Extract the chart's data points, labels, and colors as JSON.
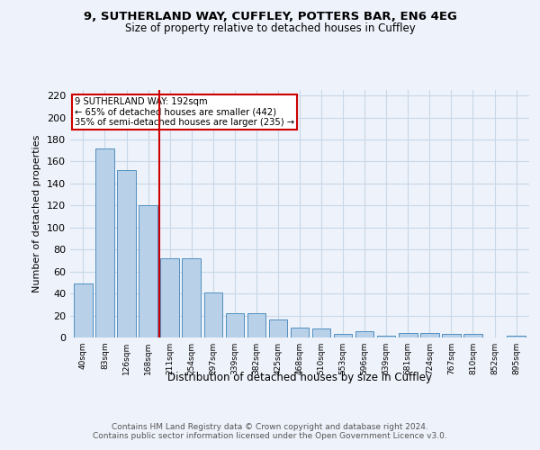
{
  "title1": "9, SUTHERLAND WAY, CUFFLEY, POTTERS BAR, EN6 4EG",
  "title2": "Size of property relative to detached houses in Cuffley",
  "xlabel": "Distribution of detached houses by size in Cuffley",
  "ylabel": "Number of detached properties",
  "categories": [
    "40sqm",
    "83sqm",
    "126sqm",
    "168sqm",
    "211sqm",
    "254sqm",
    "297sqm",
    "339sqm",
    "382sqm",
    "425sqm",
    "468sqm",
    "510sqm",
    "553sqm",
    "596sqm",
    "639sqm",
    "681sqm",
    "724sqm",
    "767sqm",
    "810sqm",
    "852sqm",
    "895sqm"
  ],
  "values": [
    49,
    172,
    152,
    120,
    72,
    72,
    41,
    22,
    22,
    16,
    9,
    8,
    3,
    6,
    2,
    4,
    4,
    3,
    3,
    0,
    2
  ],
  "bar_color": "#b8d0e8",
  "bar_edge_color": "#5090c0",
  "grid_color": "#c8d8e8",
  "annotation_text": "9 SUTHERLAND WAY: 192sqm\n← 65% of detached houses are smaller (442)\n35% of semi-detached houses are larger (235) →",
  "vline_x": 3.5,
  "vline_color": "#cc0000",
  "annotation_box_color": "#cc0000",
  "ylim": [
    0,
    225
  ],
  "yticks": [
    0,
    20,
    40,
    60,
    80,
    100,
    120,
    140,
    160,
    180,
    200,
    220
  ],
  "footer_text": "Contains HM Land Registry data © Crown copyright and database right 2024.\nContains public sector information licensed under the Open Government Licence v3.0.",
  "bg_color": "#eef2fa"
}
